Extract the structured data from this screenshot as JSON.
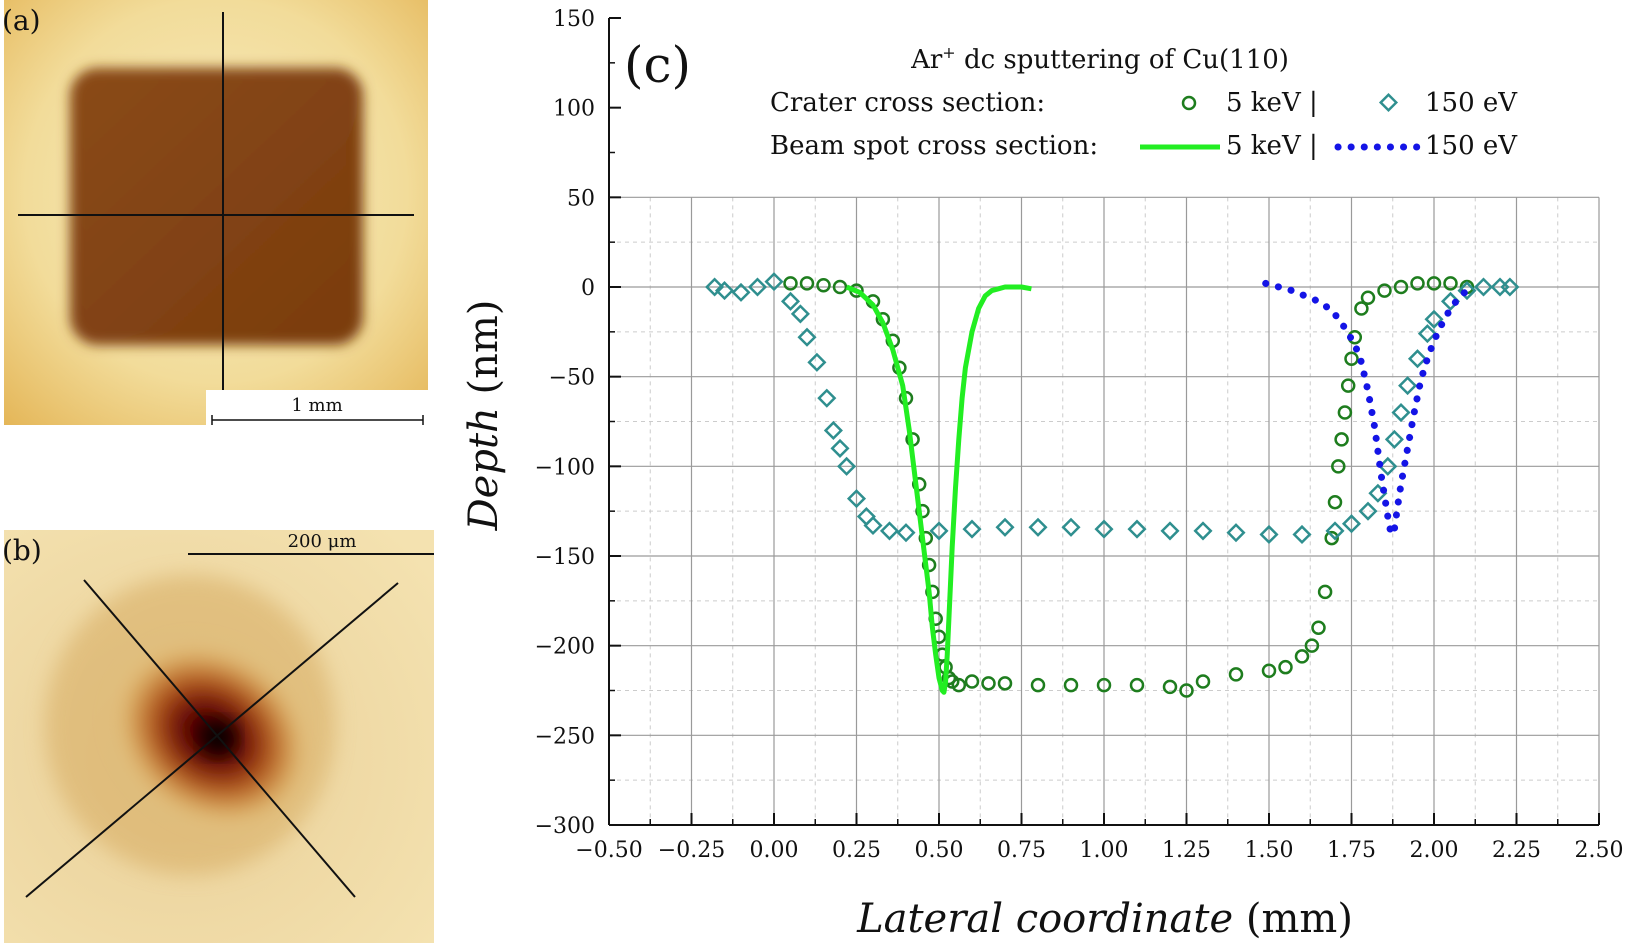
{
  "panels": {
    "a": {
      "label": "(a)",
      "scalebar_label": "1 mm"
    },
    "b": {
      "label": "(b)",
      "scalebar_label": "200 μm"
    }
  },
  "colors": {
    "crater_5kev": "#1e7d1e",
    "crater_150ev": "#2f8f8f",
    "beam_5kev": "#22ee22",
    "beam_150ev": "#1414e6",
    "grid_major": "#9a9a9a",
    "grid_minor": "#cccccc"
  },
  "chart_data": {
    "type": "scatter",
    "panel_label": "(c)",
    "title": "Ar+ dc sputtering of Cu(110)",
    "title_parts": {
      "base": "Ar",
      "sup": "+",
      "rest": " dc sputtering of Cu(110)"
    },
    "xlabel": {
      "italic": "Lateral coordinate",
      "unit": " (mm)"
    },
    "ylabel": {
      "italic": "Depth",
      "unit": " (nm)"
    },
    "xlim": [
      -0.5,
      2.5
    ],
    "ylim": [
      -300,
      150
    ],
    "xticks": [
      "−0.50",
      "−0.25",
      "0.00",
      "0.25",
      "0.50",
      "0.75",
      "1.00",
      "1.25",
      "1.50",
      "1.75",
      "2.00",
      "2.25",
      "2.50"
    ],
    "xtick_values": [
      -0.5,
      -0.25,
      0,
      0.25,
      0.5,
      0.75,
      1.0,
      1.25,
      1.5,
      1.75,
      2.0,
      2.25,
      2.5
    ],
    "yticks": [
      "150",
      "100",
      "50",
      "0",
      "−50",
      "−100",
      "−150",
      "−200",
      "−250",
      "−300"
    ],
    "ytick_values": [
      150,
      100,
      50,
      0,
      -50,
      -100,
      -150,
      -200,
      -250,
      -300
    ],
    "grid_region_ylim": [
      -300,
      50
    ],
    "legend": {
      "row1_label": "Crater cross section:",
      "row2_label": "Beam spot cross section:",
      "entry_5kev": "5 keV |",
      "entry_150ev": "150 eV"
    },
    "series": [
      {
        "name": "Crater cross section 5 keV",
        "marker": "circle",
        "color_key": "crater_5kev",
        "x": [
          0.05,
          0.1,
          0.15,
          0.2,
          0.25,
          0.3,
          0.33,
          0.36,
          0.38,
          0.4,
          0.42,
          0.44,
          0.45,
          0.46,
          0.47,
          0.48,
          0.49,
          0.5,
          0.51,
          0.52,
          0.53,
          0.54,
          0.56,
          0.6,
          0.65,
          0.7,
          0.8,
          0.9,
          1.0,
          1.1,
          1.2,
          1.25,
          1.3,
          1.4,
          1.5,
          1.55,
          1.6,
          1.63,
          1.65,
          1.67,
          1.69,
          1.7,
          1.71,
          1.72,
          1.73,
          1.74,
          1.75,
          1.76,
          1.78,
          1.8,
          1.85,
          1.9,
          1.95,
          2.0,
          2.05,
          2.1
        ],
        "y": [
          2,
          2,
          1,
          0,
          -2,
          -8,
          -18,
          -30,
          -45,
          -62,
          -85,
          -110,
          -125,
          -140,
          -155,
          -170,
          -185,
          -195,
          -205,
          -212,
          -218,
          -220,
          -222,
          -220,
          -221,
          -221,
          -222,
          -222,
          -222,
          -222,
          -223,
          -225,
          -220,
          -216,
          -214,
          -212,
          -206,
          -200,
          -190,
          -170,
          -140,
          -120,
          -100,
          -85,
          -70,
          -55,
          -40,
          -28,
          -12,
          -6,
          -2,
          0,
          2,
          2,
          2,
          0
        ]
      },
      {
        "name": "Crater cross section 150 eV",
        "marker": "diamond",
        "color_key": "crater_150ev",
        "x": [
          -0.18,
          -0.15,
          -0.1,
          -0.05,
          0.0,
          0.05,
          0.08,
          0.1,
          0.13,
          0.16,
          0.18,
          0.2,
          0.22,
          0.25,
          0.28,
          0.3,
          0.35,
          0.4,
          0.5,
          0.6,
          0.7,
          0.8,
          0.9,
          1.0,
          1.1,
          1.2,
          1.3,
          1.4,
          1.5,
          1.6,
          1.7,
          1.75,
          1.8,
          1.83,
          1.86,
          1.88,
          1.9,
          1.92,
          1.95,
          1.98,
          2.0,
          2.05,
          2.1,
          2.15,
          2.2,
          2.23
        ],
        "y": [
          0,
          -2,
          -3,
          0,
          3,
          -8,
          -15,
          -28,
          -42,
          -62,
          -80,
          -90,
          -100,
          -118,
          -128,
          -133,
          -136,
          -137,
          -136,
          -135,
          -134,
          -134,
          -134,
          -135,
          -135,
          -136,
          -136,
          -137,
          -138,
          -138,
          -136,
          -132,
          -125,
          -115,
          -100,
          -85,
          -70,
          -55,
          -40,
          -26,
          -18,
          -8,
          -2,
          0,
          0,
          0
        ]
      },
      {
        "name": "Beam spot cross section 5 keV",
        "line": "solid",
        "color_key": "beam_5kev",
        "x": [
          0.22,
          0.26,
          0.3,
          0.33,
          0.36,
          0.39,
          0.41,
          0.43,
          0.45,
          0.47,
          0.48,
          0.49,
          0.5,
          0.51,
          0.515,
          0.52,
          0.525,
          0.53,
          0.535,
          0.54,
          0.55,
          0.56,
          0.57,
          0.58,
          0.6,
          0.62,
          0.64,
          0.66,
          0.68,
          0.7,
          0.72,
          0.75,
          0.78
        ],
        "y": [
          0,
          -3,
          -10,
          -20,
          -35,
          -55,
          -80,
          -110,
          -140,
          -170,
          -190,
          -205,
          -218,
          -225,
          -226,
          -220,
          -205,
          -185,
          -165,
          -145,
          -112,
          -85,
          -62,
          -45,
          -25,
          -12,
          -5,
          -2,
          -1,
          0,
          0,
          0,
          -1
        ]
      },
      {
        "name": "Beam spot cross section 150 eV",
        "line": "dotted",
        "color_key": "beam_150ev",
        "x": [
          1.49,
          1.53,
          1.57,
          1.61,
          1.65,
          1.69,
          1.72,
          1.74,
          1.76,
          1.78,
          1.8,
          1.82,
          1.84,
          1.86,
          1.87,
          1.88,
          1.89,
          1.9,
          1.92,
          1.94,
          1.96,
          1.98,
          2.0,
          2.02,
          2.05,
          2.08,
          2.1,
          2.12
        ],
        "y": [
          2,
          0,
          -2,
          -5,
          -8,
          -13,
          -20,
          -26,
          -32,
          -42,
          -58,
          -78,
          -105,
          -128,
          -138,
          -135,
          -122,
          -110,
          -90,
          -70,
          -52,
          -40,
          -30,
          -22,
          -12,
          -5,
          -2,
          0
        ]
      }
    ]
  }
}
